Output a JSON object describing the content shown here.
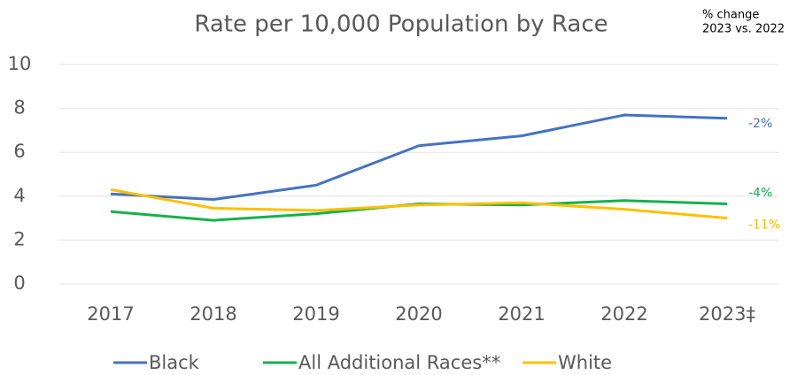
{
  "chart_data": {
    "type": "line",
    "title": "Rate per 10,000 Population by Race",
    "annotation": [
      "% change",
      "2023 vs. 2022"
    ],
    "categories": [
      "2017",
      "2018",
      "2019",
      "2020",
      "2021",
      "2022",
      "2023‡"
    ],
    "series": [
      {
        "name": "Black",
        "color": "#4472c4",
        "values": [
          4.1,
          3.85,
          4.5,
          6.3,
          6.75,
          7.7,
          7.55
        ],
        "end_label": "-2%"
      },
      {
        "name": "All Additional Races**",
        "color": "#13b24b",
        "values": [
          3.3,
          2.9,
          3.2,
          3.65,
          3.6,
          3.8,
          3.65
        ],
        "end_label": "-4%"
      },
      {
        "name": "White",
        "color": "#ffc000",
        "values": [
          4.3,
          3.45,
          3.35,
          3.6,
          3.7,
          3.4,
          3.0
        ],
        "end_label": "-11%"
      }
    ],
    "ylim": [
      0,
      10
    ],
    "yticks": [
      0,
      2,
      4,
      6,
      8,
      10
    ],
    "grid": true,
    "legend": "bottom"
  }
}
